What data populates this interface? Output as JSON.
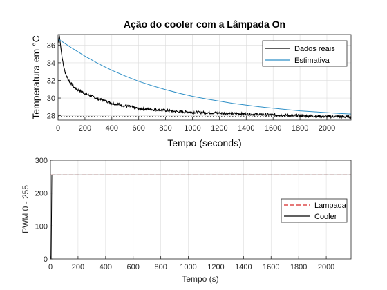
{
  "chart_data": [
    {
      "type": "line",
      "title": "Ação do cooler com a Lâmpada On",
      "xlabel": "Tempo (seconds)",
      "ylabel": "Temperatura em °C",
      "xlim": [
        0,
        2180
      ],
      "ylim": [
        27.5,
        37.2
      ],
      "xticks": [
        0,
        200,
        400,
        600,
        800,
        1000,
        1200,
        1400,
        1600,
        1800,
        2000
      ],
      "yticks": [
        28,
        30,
        32,
        34,
        36
      ],
      "grid": true,
      "legend_position": "top-right",
      "series": [
        {
          "name": "Dados reais",
          "color": "#000000",
          "x": [
            0,
            10,
            20,
            30,
            40,
            50,
            60,
            80,
            100,
            120,
            150,
            180,
            200,
            250,
            300,
            350,
            400,
            450,
            500,
            550,
            600,
            700,
            800,
            900,
            1000,
            1100,
            1200,
            1300,
            1400,
            1500,
            1600,
            1700,
            1800,
            1900,
            2000,
            2100,
            2180
          ],
          "y": [
            36.2,
            37.1,
            35.8,
            34.6,
            33.8,
            33.1,
            32.6,
            32.0,
            31.6,
            31.2,
            30.9,
            30.7,
            30.5,
            30.2,
            29.9,
            29.7,
            29.4,
            29.3,
            29.1,
            29.0,
            28.8,
            28.7,
            28.6,
            28.45,
            28.4,
            28.35,
            28.3,
            28.25,
            28.2,
            28.15,
            28.1,
            28.05,
            28.0,
            27.95,
            27.9,
            27.9,
            27.85
          ]
        },
        {
          "name": "Estimativa",
          "color": "#2e8fc6",
          "x": [
            0,
            100,
            200,
            300,
            400,
            500,
            600,
            700,
            800,
            900,
            1000,
            1100,
            1200,
            1300,
            1400,
            1500,
            1600,
            1700,
            1800,
            1900,
            2000,
            2100,
            2180
          ],
          "y": [
            36.7,
            35.7,
            34.75,
            33.9,
            33.15,
            32.5,
            31.9,
            31.4,
            30.95,
            30.55,
            30.2,
            29.9,
            29.65,
            29.4,
            29.2,
            29.0,
            28.85,
            28.7,
            28.55,
            28.45,
            28.35,
            28.25,
            28.2
          ]
        },
        {
          "name": "",
          "color": "#000000",
          "style": "dotted",
          "x": [
            0,
            2180
          ],
          "y": [
            27.9,
            27.9
          ]
        }
      ]
    },
    {
      "type": "line",
      "title": "",
      "xlabel": "Tempo (s)",
      "ylabel": "PWM 0 - 255",
      "xlim": [
        0,
        2180
      ],
      "ylim": [
        0,
        300
      ],
      "xticks": [
        0,
        200,
        400,
        600,
        800,
        1000,
        1200,
        1400,
        1600,
        1800,
        2000
      ],
      "yticks": [
        0,
        100,
        200,
        300
      ],
      "grid": true,
      "legend_position": "right",
      "series": [
        {
          "name": "Lampada",
          "color": "#d62728",
          "style": "dashed",
          "x": [
            0,
            2180
          ],
          "y": [
            255,
            255
          ]
        },
        {
          "name": "Cooler",
          "color": "#000000",
          "x": [
            0,
            5,
            10,
            2180
          ],
          "y": [
            0,
            0,
            255,
            255
          ]
        }
      ]
    }
  ]
}
